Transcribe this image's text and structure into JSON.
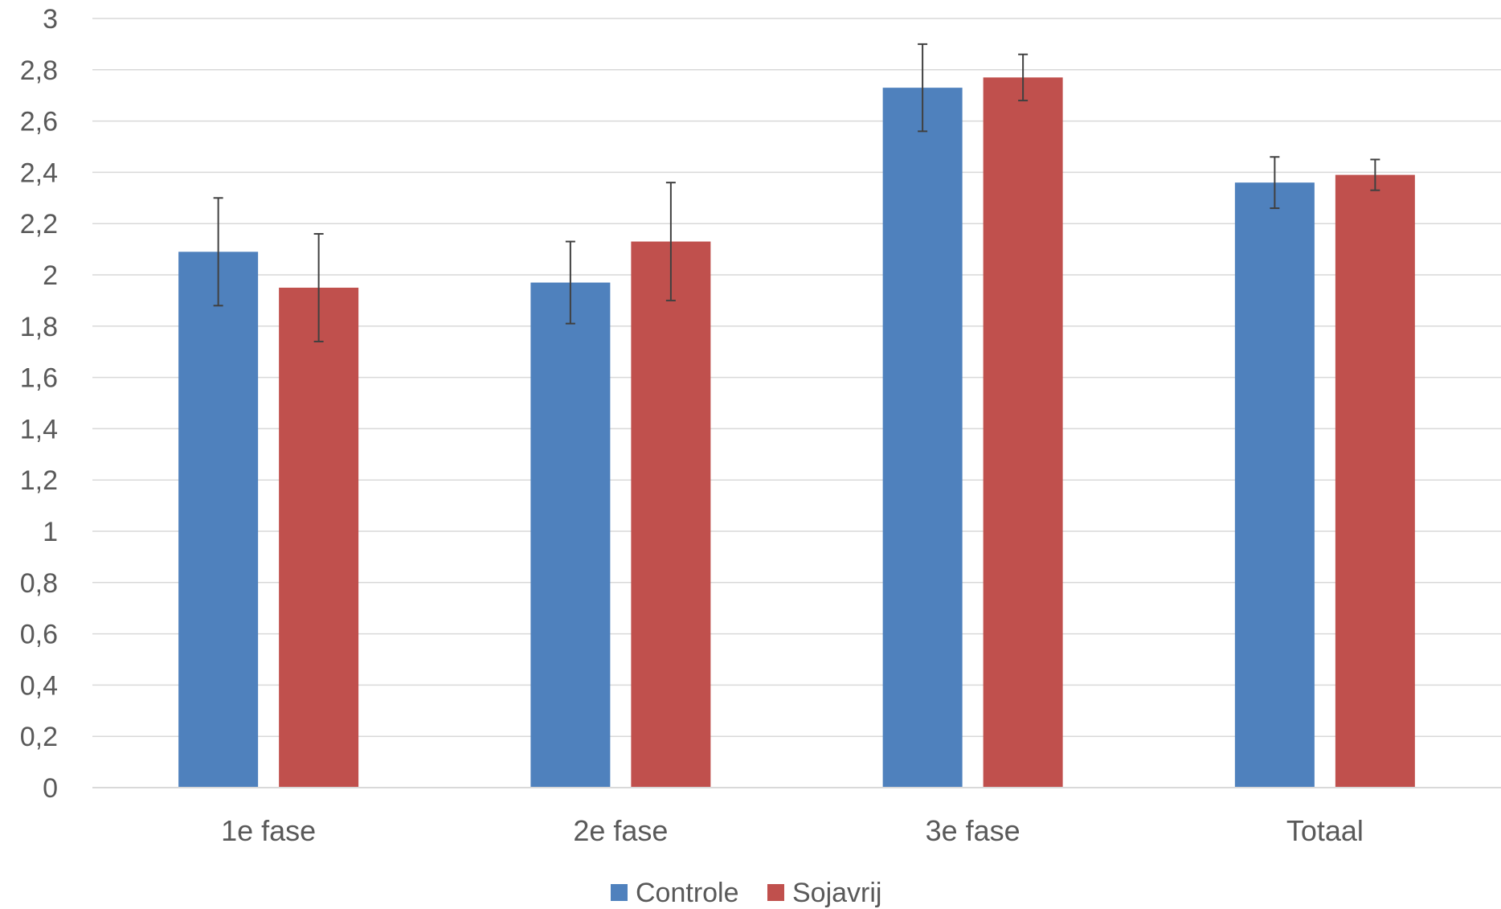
{
  "chart_data": {
    "type": "bar",
    "categories": [
      "1e fase",
      "2e fase",
      "3e fase",
      "Totaal"
    ],
    "series": [
      {
        "name": "Controle",
        "color": "#4f81bd",
        "values": [
          2.09,
          1.97,
          2.73,
          2.36
        ],
        "error_low": [
          1.88,
          1.81,
          2.56,
          2.26
        ],
        "error_high": [
          2.3,
          2.13,
          2.9,
          2.46
        ]
      },
      {
        "name": "Sojavrij",
        "color": "#c0504d",
        "values": [
          1.95,
          2.13,
          2.77,
          2.39
        ],
        "error_low": [
          1.74,
          1.9,
          2.68,
          2.33
        ],
        "error_high": [
          2.16,
          2.36,
          2.86,
          2.45
        ]
      }
    ],
    "ylim": [
      0,
      3
    ],
    "y_ticks": [
      0,
      0.2,
      0.4,
      0.6,
      0.8,
      1,
      1.2,
      1.4,
      1.6,
      1.8,
      2,
      2.2,
      2.4,
      2.6,
      2.8,
      3
    ],
    "y_tick_labels": [
      "0",
      "0,2",
      "0,4",
      "0,6",
      "0,8",
      "1",
      "1,2",
      "1,4",
      "1,6",
      "1,8",
      "2",
      "2,2",
      "2,4",
      "2,6",
      "2,8",
      "3"
    ],
    "grid": true,
    "legend_position": "bottom"
  }
}
